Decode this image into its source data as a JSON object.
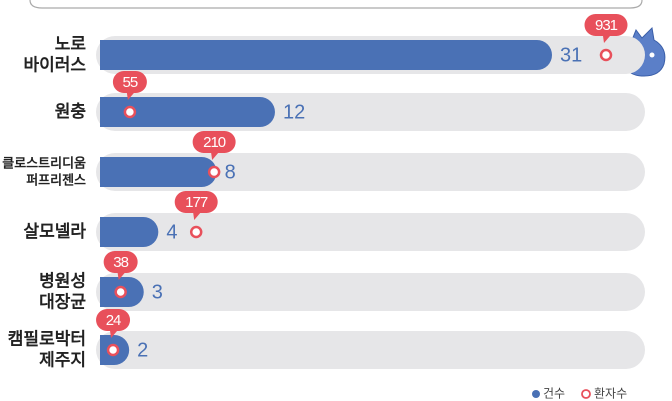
{
  "chart_data": {
    "type": "bar",
    "categories": [
      "노로\n바이러스",
      "원충",
      "클로스트리디움\n퍼프리젠스",
      "살모넬라",
      "병원성\n대장균",
      "캠필로박터\n제주지"
    ],
    "series": [
      {
        "name": "건수",
        "color": "#4a71b5",
        "values": [
          31,
          12,
          8,
          4,
          3,
          2
        ]
      },
      {
        "name": "환자수",
        "color": "#e8505b",
        "values": [
          931,
          55,
          210,
          177,
          38,
          24
        ]
      }
    ]
  }
}
